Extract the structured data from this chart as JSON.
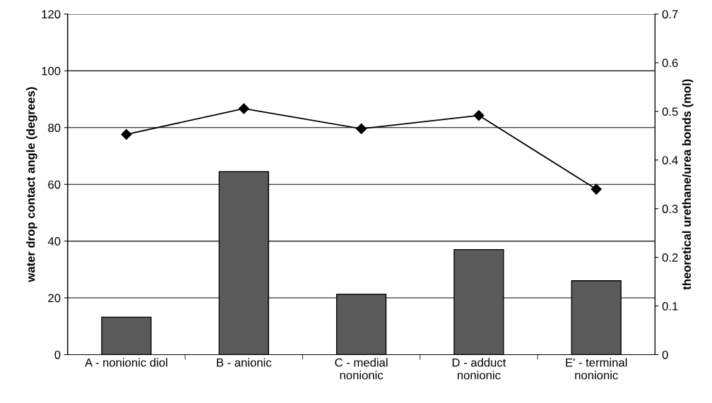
{
  "chart_data": {
    "type": "bar",
    "categories": [
      "A - nonionic diol",
      "B - anionic",
      "C - medial\nnonionic",
      "D - adduct\nnonionic",
      "E' - terminal\nnonionic"
    ],
    "series": [
      {
        "axis": "y2",
        "color": "#5a5a5a",
        "values": [
          0.077,
          0.376,
          0.124,
          0.216,
          0.152
        ]
      },
      {
        "type": "line",
        "axis": "y",
        "color": "#000000",
        "marker": "diamond",
        "values": [
          77.6,
          86.7,
          79.6,
          84.3,
          58.3
        ]
      }
    ],
    "ylabel": "water drop contact angle (degrees)",
    "y2label": "theoretical urethane/urea bonds (mol)",
    "ylim": [
      0,
      120
    ],
    "yticks": [
      0,
      20,
      40,
      60,
      80,
      100,
      120
    ],
    "y2lim": [
      0,
      0.7
    ],
    "y2ticks": [
      {
        "value": 0,
        "label": "0"
      },
      0.1,
      0.2,
      0.3,
      0.4,
      0.5,
      0.6,
      0.7
    ],
    "grid": "y",
    "legend": false
  }
}
